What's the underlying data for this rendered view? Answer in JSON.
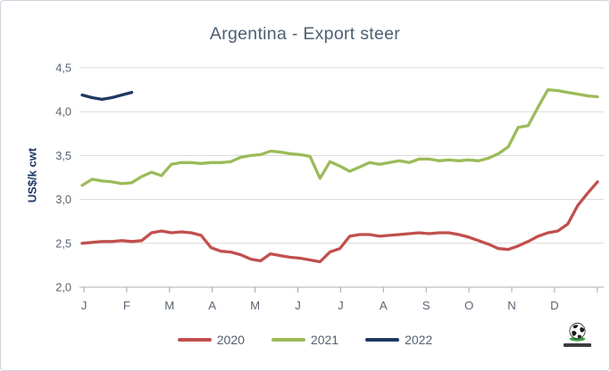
{
  "chart": {
    "title": "Argentina - Export steer",
    "y_axis_title": "US$/k cwt"
  },
  "chart_data": {
    "type": "line",
    "title": "Argentina - Export steer",
    "ylabel": "US$/k cwt",
    "ylim": [
      2.0,
      4.5
    ],
    "grid": true,
    "legend_position": "bottom",
    "x_tick_labels": [
      "J",
      "F",
      "M",
      "A",
      "M",
      "J",
      "J",
      "A",
      "S",
      "O",
      "N",
      "D"
    ],
    "y_ticks": {
      "labels": [
        "4,5",
        "4,0",
        "3,5",
        "3,0",
        "2,5",
        "2,0"
      ],
      "values": [
        4.5,
        4.0,
        3.5,
        3.0,
        2.5,
        2.0
      ]
    },
    "x_unit": "week-of-year",
    "series": [
      {
        "name": "2020",
        "color": "#c0504d",
        "values": [
          2.5,
          2.51,
          2.52,
          2.52,
          2.53,
          2.52,
          2.53,
          2.62,
          2.64,
          2.62,
          2.63,
          2.62,
          2.59,
          2.45,
          2.41,
          2.4,
          2.37,
          2.32,
          2.3,
          2.38,
          2.36,
          2.34,
          2.33,
          2.31,
          2.29,
          2.4,
          2.44,
          2.58,
          2.6,
          2.6,
          2.58,
          2.59,
          2.6,
          2.61,
          2.62,
          2.61,
          2.62,
          2.62,
          2.6,
          2.57,
          2.53,
          2.49,
          2.44,
          2.43,
          2.47,
          2.52,
          2.58,
          2.62,
          2.64,
          2.72,
          2.93,
          3.07,
          3.2
        ]
      },
      {
        "name": "2021",
        "color": "#9bbb59",
        "values": [
          3.16,
          3.23,
          3.21,
          3.2,
          3.18,
          3.19,
          3.26,
          3.31,
          3.27,
          3.4,
          3.42,
          3.42,
          3.41,
          3.42,
          3.42,
          3.43,
          3.48,
          3.5,
          3.51,
          3.55,
          3.54,
          3.52,
          3.51,
          3.49,
          3.24,
          3.43,
          3.38,
          3.32,
          3.37,
          3.42,
          3.4,
          3.42,
          3.44,
          3.42,
          3.46,
          3.46,
          3.44,
          3.45,
          3.44,
          3.45,
          3.44,
          3.47,
          3.52,
          3.6,
          3.82,
          3.84,
          4.05,
          4.25,
          4.24,
          4.22,
          4.2,
          4.18,
          4.17
        ]
      },
      {
        "name": "2022",
        "color": "#1f3864",
        "values": [
          4.19,
          4.16,
          4.14,
          4.16,
          4.19,
          4.22
        ]
      }
    ]
  },
  "legend": {
    "entries": [
      {
        "label": "2020",
        "color": "#c0504d"
      },
      {
        "label": "2021",
        "color": "#9bbb59"
      },
      {
        "label": "2022",
        "color": "#1f3864"
      }
    ]
  },
  "style": {
    "gridline_color": "#d9d9d9",
    "axis_line_color": "#bfbfbf",
    "tick_color": "#a6a6a6",
    "axis_label_color": "#5a6573",
    "title_color": "#4e6072"
  }
}
